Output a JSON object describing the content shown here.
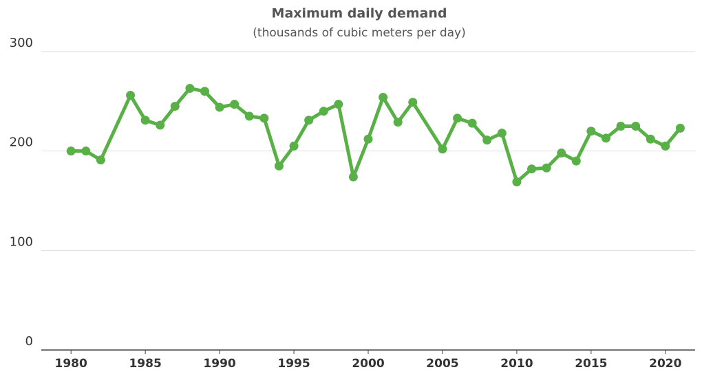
{
  "chart_data": {
    "type": "line",
    "title": "Maximum daily demand",
    "subtitle": "(thousands of cubic meters per day)",
    "x": [
      1980,
      1981,
      1982,
      1984,
      1985,
      1986,
      1987,
      1988,
      1989,
      1990,
      1991,
      1992,
      1993,
      1994,
      1995,
      1996,
      1997,
      1998,
      1999,
      2000,
      2001,
      2002,
      2003,
      2005,
      2006,
      2007,
      2008,
      2009,
      2010,
      2011,
      2012,
      2013,
      2014,
      2015,
      2016,
      2017,
      2018,
      2019,
      2020,
      2021
    ],
    "series": [
      {
        "name": "Maximum daily demand",
        "color": "#58b047",
        "values": [
          200,
          200,
          191,
          256,
          231,
          226,
          245,
          263,
          260,
          244,
          247,
          235,
          233,
          185,
          205,
          231,
          240,
          247,
          174,
          212,
          254,
          229,
          249,
          202,
          233,
          228,
          211,
          218,
          169,
          182,
          183,
          198,
          190,
          220,
          213,
          225,
          225,
          212,
          205,
          223
        ]
      }
    ],
    "xlim": [
      1978,
      2022
    ],
    "xticks": [
      1980,
      1985,
      1990,
      1995,
      2000,
      2005,
      2010,
      2015,
      2020
    ],
    "ylim": [
      0,
      300
    ],
    "yticks": [
      0,
      100,
      200,
      300
    ],
    "grid": true
  }
}
